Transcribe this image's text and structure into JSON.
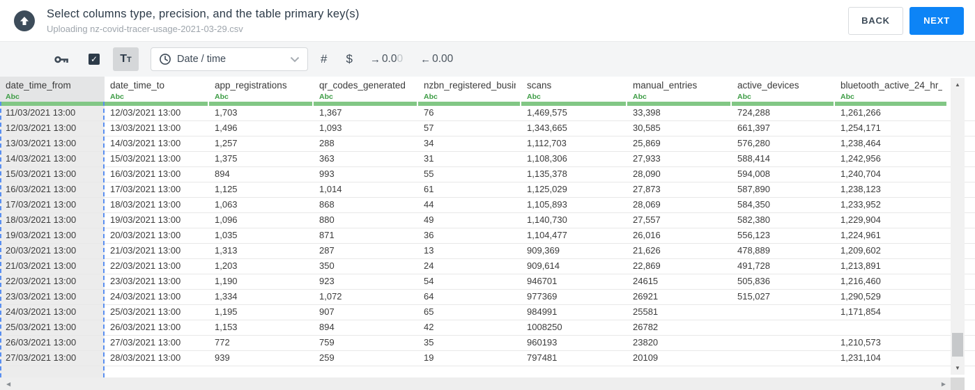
{
  "header": {
    "title": "Select columns type, precision, and the table primary key(s)",
    "subtitle": "Uploading nz-covid-tracer-usage-2021-03-29.csv",
    "back_label": "BACK",
    "next_label": "NEXT"
  },
  "toolbar": {
    "checkbox_checked": true,
    "check_glyph": "✓",
    "text_type_label": "Tt",
    "type_select": {
      "value": "Date / time",
      "icon": "clock-icon"
    },
    "number_label": "#",
    "currency_label": "$",
    "precision_right": {
      "arrow_glyph": "→",
      "digits_dark": "0.0",
      "digits_light": "0"
    },
    "precision_left": {
      "arrow_glyph": "←",
      "digits": "0.00"
    }
  },
  "table": {
    "columns": [
      {
        "name": "date_time_from",
        "type": "Abc",
        "selected": true
      },
      {
        "name": "date_time_to",
        "type": "Abc",
        "selected": false
      },
      {
        "name": "app_registrations",
        "type": "Abc",
        "selected": false
      },
      {
        "name": "qr_codes_generated",
        "type": "Abc",
        "selected": false
      },
      {
        "name": "nzbn_registered_busine",
        "type": "Abc",
        "selected": false
      },
      {
        "name": "scans",
        "type": "Abc",
        "selected": false
      },
      {
        "name": "manual_entries",
        "type": "Abc",
        "selected": false
      },
      {
        "name": "active_devices",
        "type": "Abc",
        "selected": false
      },
      {
        "name": "bluetooth_active_24_hr_",
        "type": "Abc",
        "selected": false
      }
    ],
    "rows": [
      [
        "11/03/2021 13:00",
        "12/03/2021 13:00",
        "1,703",
        "1,367",
        "76",
        "1,469,575",
        "33,398",
        "724,288",
        "1,261,266"
      ],
      [
        "12/03/2021 13:00",
        "13/03/2021 13:00",
        "1,496",
        "1,093",
        "57",
        "1,343,665",
        "30,585",
        "661,397",
        "1,254,171"
      ],
      [
        "13/03/2021 13:00",
        "14/03/2021 13:00",
        "1,257",
        "288",
        "34",
        "1,112,703",
        "25,869",
        "576,280",
        "1,238,464"
      ],
      [
        "14/03/2021 13:00",
        "15/03/2021 13:00",
        "1,375",
        "363",
        "31",
        "1,108,306",
        "27,933",
        "588,414",
        "1,242,956"
      ],
      [
        "15/03/2021 13:00",
        "16/03/2021 13:00",
        "894",
        "993",
        "55",
        "1,135,378",
        "28,090",
        "594,008",
        "1,240,704"
      ],
      [
        "16/03/2021 13:00",
        "17/03/2021 13:00",
        "1,125",
        "1,014",
        "61",
        "1,125,029",
        "27,873",
        "587,890",
        "1,238,123"
      ],
      [
        "17/03/2021 13:00",
        "18/03/2021 13:00",
        "1,063",
        "868",
        "44",
        "1,105,893",
        "28,069",
        "584,350",
        "1,233,952"
      ],
      [
        "18/03/2021 13:00",
        "19/03/2021 13:00",
        "1,096",
        "880",
        "49",
        "1,140,730",
        "27,557",
        "582,380",
        "1,229,904"
      ],
      [
        "19/03/2021 13:00",
        "20/03/2021 13:00",
        "1,035",
        "871",
        "36",
        "1,104,477",
        "26,016",
        "556,123",
        "1,224,961"
      ],
      [
        "20/03/2021 13:00",
        "21/03/2021 13:00",
        "1,313",
        "287",
        "13",
        "909,369",
        "21,626",
        "478,889",
        "1,209,602"
      ],
      [
        "21/03/2021 13:00",
        "22/03/2021 13:00",
        "1,203",
        "350",
        "24",
        "909,614",
        "22,869",
        "491,728",
        "1,213,891"
      ],
      [
        "22/03/2021 13:00",
        "23/03/2021 13:00",
        "1,190",
        "923",
        "54",
        "946701",
        "24615",
        "505,836",
        "1,216,460"
      ],
      [
        "23/03/2021 13:00",
        "24/03/2021 13:00",
        "1,334",
        "1,072",
        "64",
        "977369",
        "26921",
        "515,027",
        "1,290,529"
      ],
      [
        "24/03/2021 13:00",
        "25/03/2021 13:00",
        "1,195",
        "907",
        "65",
        "984991",
        "25581",
        "",
        "1,171,854"
      ],
      [
        "25/03/2021 13:00",
        "26/03/2021 13:00",
        "1,153",
        "894",
        "42",
        "1008250",
        "26782",
        "",
        ""
      ],
      [
        "26/03/2021 13:00",
        "27/03/2021 13:00",
        "772",
        "759",
        "35",
        "960193",
        "23820",
        "",
        "1,210,573"
      ],
      [
        "27/03/2021 13:00",
        "28/03/2021 13:00",
        "939",
        "259",
        "19",
        "797481",
        "20109",
        "",
        "1,231,104"
      ]
    ]
  },
  "scrollbars": {
    "up_glyph": "▲",
    "down_glyph": "▼",
    "left_glyph": "◀",
    "right_glyph": "▶"
  },
  "colors": {
    "accent_blue": "#0d84f6",
    "type_green": "#3d9c45",
    "underline_green": "#82c785",
    "selected_column_dash": "#5a8ff0",
    "selected_column_bg": "#ececec"
  }
}
